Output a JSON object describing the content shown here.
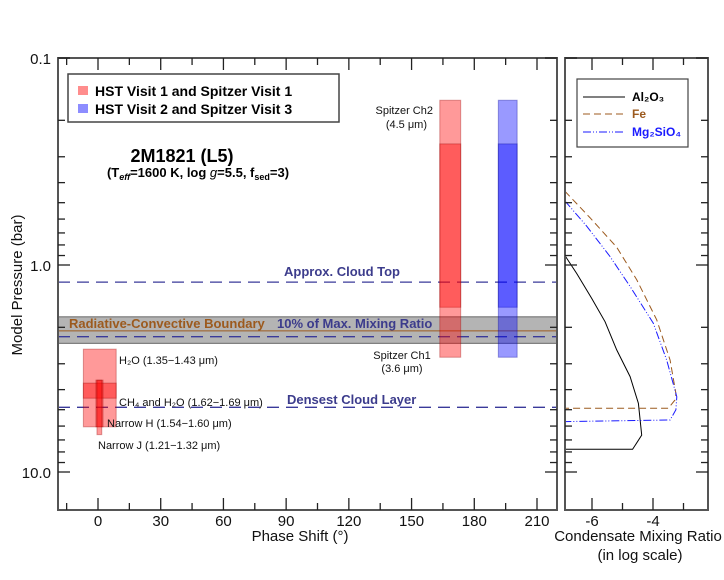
{
  "chart_data": [
    {
      "type": "bar",
      "title": "2M1821 (L5)",
      "subtitle_parts": [
        "(T",
        "eff",
        "=1600 K, log ",
        "g",
        "=5.5, f",
        "sed",
        "=3)"
      ],
      "xlabel": "Phase Shift (°)",
      "ylabel": "Model Pressure (bar)",
      "xlim": [
        -19,
        220
      ],
      "ylim": [
        0.1,
        15
      ],
      "yscale": "log",
      "y_inverted": true,
      "xticks": [
        0,
        30,
        60,
        90,
        120,
        150,
        180,
        210
      ],
      "xtick_labels": [
        "0",
        "30",
        "60",
        "90",
        "120",
        "150",
        "180",
        "210"
      ],
      "yticks": [
        0.1,
        1.0,
        10.0
      ],
      "ytick_labels": [
        "0.1",
        "1.0",
        "10.0"
      ],
      "legend": {
        "placement": "top-left",
        "entries": [
          {
            "label": "HST Visit 1 and Spitzer Visit 1",
            "color": "#ff6666"
          },
          {
            "label": "HST Visit 2 and Spitzer Visit 3",
            "color": "#6666ff"
          }
        ]
      },
      "range_bars": [
        {
          "group": "visit1",
          "label": "Spitzer Ch2",
          "sublabel": "(4.5 μm)",
          "phase": [
            163.5,
            173.5
          ],
          "pressure": [
            0.16,
            1.6
          ],
          "color": "#ff0000"
        },
        {
          "group": "visit1",
          "label": "Spitzer Ch1",
          "sublabel": "(3.6 μm)",
          "phase": [
            163.5,
            173.5
          ],
          "pressure": [
            0.26,
            2.79
          ],
          "color": "#ff0000"
        },
        {
          "group": "visit2",
          "label": "",
          "phase": [
            191.5,
            200.5
          ],
          "pressure": [
            0.16,
            1.6
          ],
          "color": "#0000ff"
        },
        {
          "group": "visit2",
          "label": "",
          "phase": [
            191.5,
            200.5
          ],
          "pressure": [
            0.26,
            2.79
          ],
          "color": "#0000ff"
        },
        {
          "group": "visit1",
          "label": "H₂O (1.35−1.43 μm)",
          "phase": [
            -7,
            8.7
          ],
          "pressure": [
            2.55,
            6.05
          ],
          "color": "#ff0000"
        },
        {
          "group": "visit1",
          "label": "CH₄ and H₂O (1.62−1.69 μm)",
          "phase": [
            -7,
            8.7
          ],
          "pressure": [
            3.72,
            4.4
          ],
          "color": "#ff0000"
        },
        {
          "group": "visit1",
          "label": "Narrow H (1.54−1.60 μm)",
          "phase": [
            -1,
            2.4
          ],
          "pressure": [
            3.6,
            6.05
          ],
          "color": "#ff0000"
        },
        {
          "group": "visit1",
          "label": "Narrow J (1.21−1.32 μm)",
          "phase": [
            -0.5,
            1.8
          ],
          "pressure": [
            3.6,
            6.6
          ],
          "color": "#ff0000"
        }
      ],
      "reference_lines": [
        {
          "label": "Approx. Cloud Top",
          "pressure": 1.21,
          "style": "dashed",
          "color": "#3a3a9a"
        },
        {
          "label": "Radiative-Convective Boundary",
          "pressure": 2.08,
          "style": "solid",
          "color": "#9c5a1e"
        },
        {
          "label": "10% of Max. Mixing Ratio",
          "pressure": 2.22,
          "style": "dashed",
          "color": "#3a3a9a",
          "band": [
            1.78,
            2.39
          ],
          "band_color": "#b4b4b4"
        },
        {
          "label": "Densest Cloud Layer",
          "pressure": 4.87,
          "style": "dashed",
          "color": "#3a3a9a"
        }
      ]
    },
    {
      "type": "line",
      "xlabel": "Condensate Mixing Ratio",
      "xlabel2": "(in log scale)",
      "xlim": [
        -6.9,
        -2.3
      ],
      "ylim": [
        0.1,
        15
      ],
      "yscale": "log",
      "xticks": [
        -6,
        -4
      ],
      "xtick_labels": [
        "-6",
        "-4"
      ],
      "legend": {
        "placement": "top-right"
      },
      "series": [
        {
          "name": "Al₂O₃",
          "color": "#000000",
          "style": "solid",
          "x": [
            -6.89,
            -6.5,
            -6.01,
            -5.57,
            -5.19,
            -4.75,
            -4.48,
            -4.37,
            -4.67,
            -6.89
          ],
          "y": [
            0.9,
            1.1,
            1.45,
            1.88,
            2.57,
            3.46,
            4.66,
            6.63,
            7.77,
            7.77
          ]
        },
        {
          "name": "Fe",
          "color": "#9c5a1e",
          "style": "dashed",
          "x": [
            -6.89,
            -6.07,
            -5.19,
            -4.53,
            -3.88,
            -3.44,
            -3.25,
            -3.28,
            -3.5,
            -6.89
          ],
          "y": [
            0.44,
            0.59,
            0.82,
            1.18,
            1.84,
            2.88,
            4.17,
            4.49,
            4.92,
            4.92
          ]
        },
        {
          "name": "Mg₂SiO₄",
          "color": "#1a1aff",
          "style": "dash-dot-dot",
          "x": [
            -6.89,
            -6.17,
            -5.41,
            -4.75,
            -3.99,
            -3.55,
            -3.22,
            -3.25,
            -3.44,
            -6.89
          ],
          "y": [
            0.49,
            0.65,
            0.91,
            1.27,
            1.91,
            2.88,
            4.33,
            5.0,
            5.61,
            5.71
          ]
        }
      ]
    }
  ]
}
